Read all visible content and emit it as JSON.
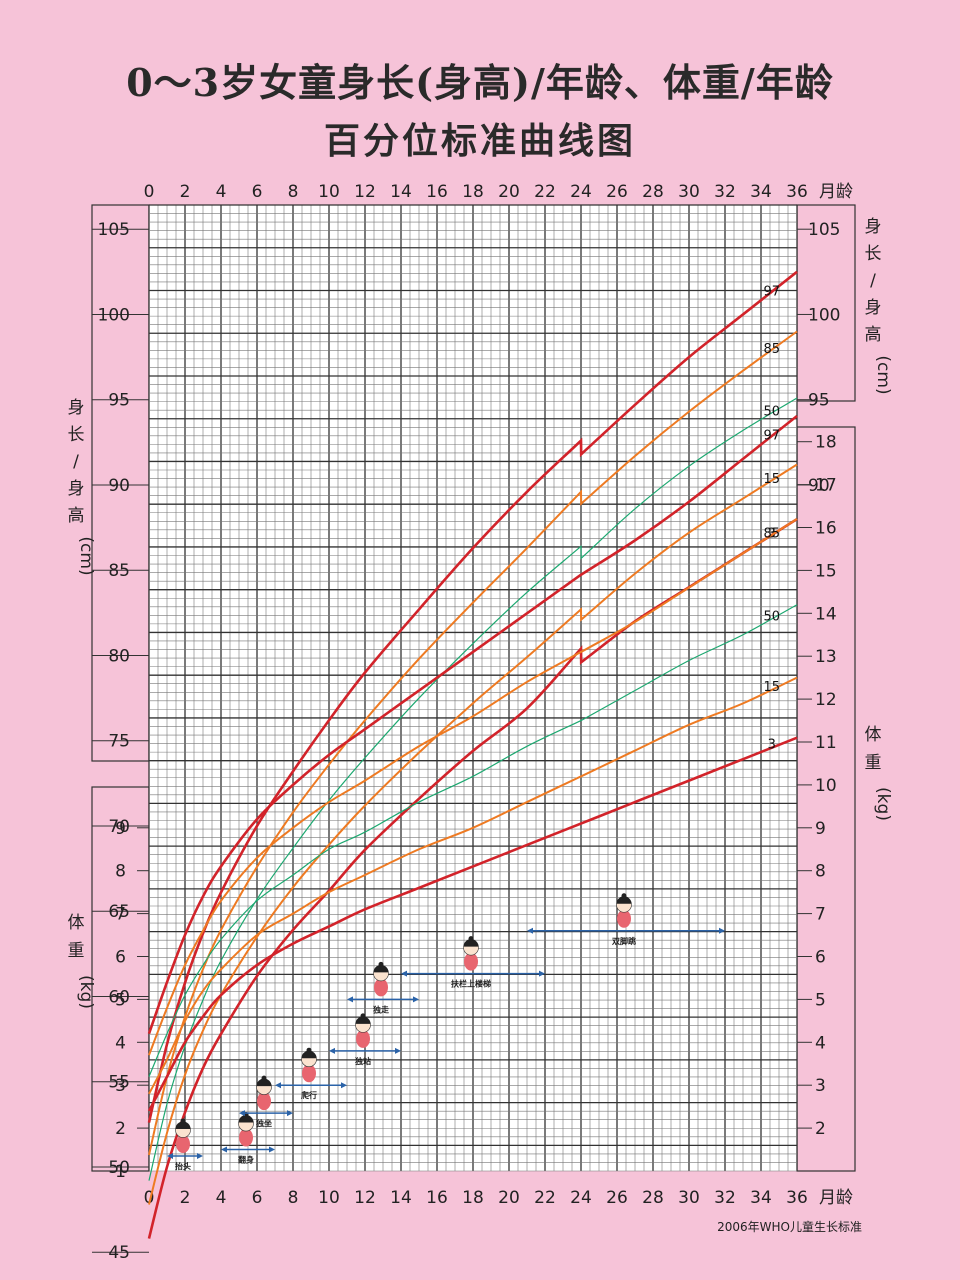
{
  "title_line1": "0～3岁女童身长(身高)/年龄、体重/年龄",
  "title_line2": "百分位标准曲线图",
  "footer": "2006年WHO儿童生长标准",
  "colors": {
    "background": "#f6c3d8",
    "p3_p97": "#d2232a",
    "p15_p85": "#ee7a22",
    "p50": "#1ca870",
    "milestone_arrow": "#2b63a8",
    "grid_bg": "#ffffff"
  },
  "chart_data": {
    "type": "line",
    "x_axis": {
      "label": "月龄",
      "range": [
        0,
        36
      ],
      "ticks": [
        0,
        2,
        4,
        6,
        8,
        10,
        12,
        14,
        16,
        18,
        20,
        22,
        24,
        26,
        28,
        30,
        32,
        34,
        36
      ],
      "grid_step": 0.5
    },
    "height_axis": {
      "label_left": "身长/身高(cm)",
      "label_right": "身长/身高(cm)",
      "unit": "cm",
      "left_ticks": [
        45,
        50,
        55,
        60,
        65,
        70,
        75,
        80,
        85,
        90,
        95,
        100,
        105
      ],
      "right_ticks": [
        90,
        95,
        100,
        105
      ]
    },
    "weight_axis": {
      "label_left": "体重(kg)",
      "label_right": "体重(kg)",
      "unit": "kg",
      "left_ticks": [
        1,
        2,
        3,
        4,
        5,
        6,
        7,
        8,
        9
      ],
      "right_ticks": [
        2,
        3,
        4,
        5,
        6,
        7,
        8,
        9,
        10,
        11,
        12,
        13,
        14,
        15,
        16,
        17,
        18
      ]
    },
    "x": [
      0,
      1,
      2,
      3,
      4,
      6,
      8,
      10,
      12,
      15,
      18,
      21,
      24,
      24.01,
      27,
      30,
      33,
      36
    ],
    "height_series": [
      {
        "name": "3",
        "values": [
          45.8,
          50.0,
          53.2,
          55.8,
          57.8,
          61.2,
          63.9,
          66.2,
          68.6,
          71.6,
          74.4,
          76.9,
          80.4,
          79.6,
          82.0,
          84.0,
          86.0,
          88.0
        ]
      },
      {
        "name": "15",
        "values": [
          47.8,
          52.0,
          55.4,
          58.0,
          60.1,
          63.5,
          66.4,
          68.9,
          71.2,
          74.3,
          77.2,
          79.9,
          82.7,
          82.1,
          84.8,
          87.2,
          89.2,
          91.2
        ]
      },
      {
        "name": "50",
        "values": [
          49.2,
          53.7,
          57.1,
          59.8,
          62.1,
          65.7,
          68.7,
          71.5,
          74.0,
          77.5,
          80.7,
          83.7,
          86.4,
          85.7,
          88.6,
          91.1,
          93.2,
          95.1
        ]
      },
      {
        "name": "85",
        "values": [
          50.7,
          55.3,
          58.8,
          61.6,
          63.9,
          67.6,
          70.8,
          73.6,
          76.2,
          79.8,
          83.1,
          86.3,
          89.6,
          88.9,
          91.7,
          94.3,
          96.7,
          99.0
        ]
      },
      {
        "name": "97",
        "values": [
          52.6,
          57.2,
          60.8,
          63.7,
          66.1,
          70.0,
          73.2,
          76.2,
          79.0,
          82.7,
          86.3,
          89.6,
          92.6,
          91.8,
          94.7,
          97.5,
          100.0,
          102.5
        ]
      }
    ],
    "weight_series": [
      {
        "name": "3",
        "values": [
          2.4,
          3.2,
          4.0,
          4.6,
          5.1,
          5.8,
          6.3,
          6.7,
          7.1,
          7.6,
          8.1,
          8.6,
          9.1,
          9.1,
          9.6,
          10.1,
          10.6,
          11.1
        ]
      },
      {
        "name": "15",
        "values": [
          2.8,
          3.6,
          4.5,
          5.2,
          5.7,
          6.5,
          7.0,
          7.5,
          7.9,
          8.5,
          9.0,
          9.6,
          10.2,
          10.2,
          10.8,
          11.4,
          11.9,
          12.5
        ]
      },
      {
        "name": "50",
        "values": [
          3.2,
          4.2,
          5.1,
          5.8,
          6.4,
          7.3,
          7.9,
          8.5,
          8.9,
          9.6,
          10.2,
          10.9,
          11.5,
          11.5,
          12.2,
          12.9,
          13.5,
          14.2
        ]
      },
      {
        "name": "85",
        "values": [
          3.7,
          4.8,
          5.8,
          6.6,
          7.3,
          8.3,
          9.0,
          9.6,
          10.1,
          10.9,
          11.6,
          12.4,
          13.1,
          13.1,
          13.8,
          14.6,
          15.4,
          16.2
        ]
      },
      {
        "name": "97",
        "values": [
          4.2,
          5.4,
          6.5,
          7.4,
          8.1,
          9.2,
          10.0,
          10.7,
          11.3,
          12.2,
          13.1,
          14.0,
          14.9,
          14.9,
          15.7,
          16.6,
          17.6,
          18.6
        ]
      }
    ],
    "milestones": [
      {
        "label": "抬头",
        "from": 1.0,
        "to": 3.0,
        "level": 1.35
      },
      {
        "label": "翻身",
        "from": 4.0,
        "to": 7.0,
        "level": 1.5
      },
      {
        "label": "独坐",
        "from": 5.0,
        "to": 8.0,
        "level": 2.35
      },
      {
        "label": "爬行",
        "from": 7.0,
        "to": 11.0,
        "level": 3.0
      },
      {
        "label": "独站",
        "from": 10.0,
        "to": 14.0,
        "level": 3.8
      },
      {
        "label": "独走",
        "from": 11.0,
        "to": 15.0,
        "level": 5.0
      },
      {
        "label": "扶栏上楼梯",
        "from": 14.0,
        "to": 22.0,
        "level": 5.6
      },
      {
        "label": "双脚跳",
        "from": 21.0,
        "to": 32.0,
        "level": 6.6
      }
    ]
  }
}
